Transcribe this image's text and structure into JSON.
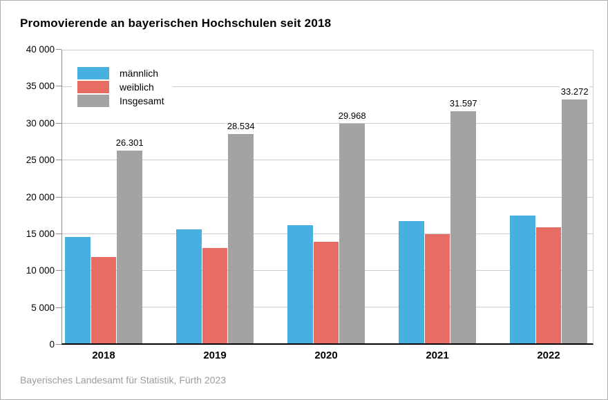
{
  "title": "Promovierende an bayerischen Hochschulen seit 2018",
  "source": "Bayerisches Landesamt für Statistik, Fürth 2023",
  "colors": {
    "grid": "#cccccc",
    "axis": "#8c8c8c",
    "baseline": "#000000",
    "frame_border": "#aeaeae",
    "source_text": "#9c9c9c"
  },
  "chart_data": {
    "type": "bar",
    "title": "Promovierende an bayerischen Hochschulen seit 2018",
    "categories": [
      "2018",
      "2019",
      "2020",
      "2021",
      "2022"
    ],
    "series": [
      {
        "name": "männlich",
        "color": "#48b0e0",
        "values": [
          14500,
          15500,
          16100,
          16700,
          17450
        ]
      },
      {
        "name": "weiblich",
        "color": "#e76c63",
        "values": [
          11800,
          13000,
          13850,
          14850,
          15800
        ]
      },
      {
        "name": "Insgesamt",
        "color": "#a4a3a3",
        "values": [
          26301,
          28534,
          29968,
          31597,
          33272
        ],
        "labels": [
          "26.301",
          "28.534",
          "29.968",
          "31.597",
          "33.272"
        ],
        "show_labels": true
      }
    ],
    "xlabel": "",
    "ylabel": "",
    "ylim": [
      0,
      40000
    ],
    "ytick_step": 5000,
    "ytick_labels": [
      "0",
      "5 000",
      "10 000",
      "15 000",
      "20 000",
      "25 000",
      "30 000",
      "35 000",
      "40 000"
    ],
    "grid": true,
    "legend_position": "top-left-inside"
  }
}
